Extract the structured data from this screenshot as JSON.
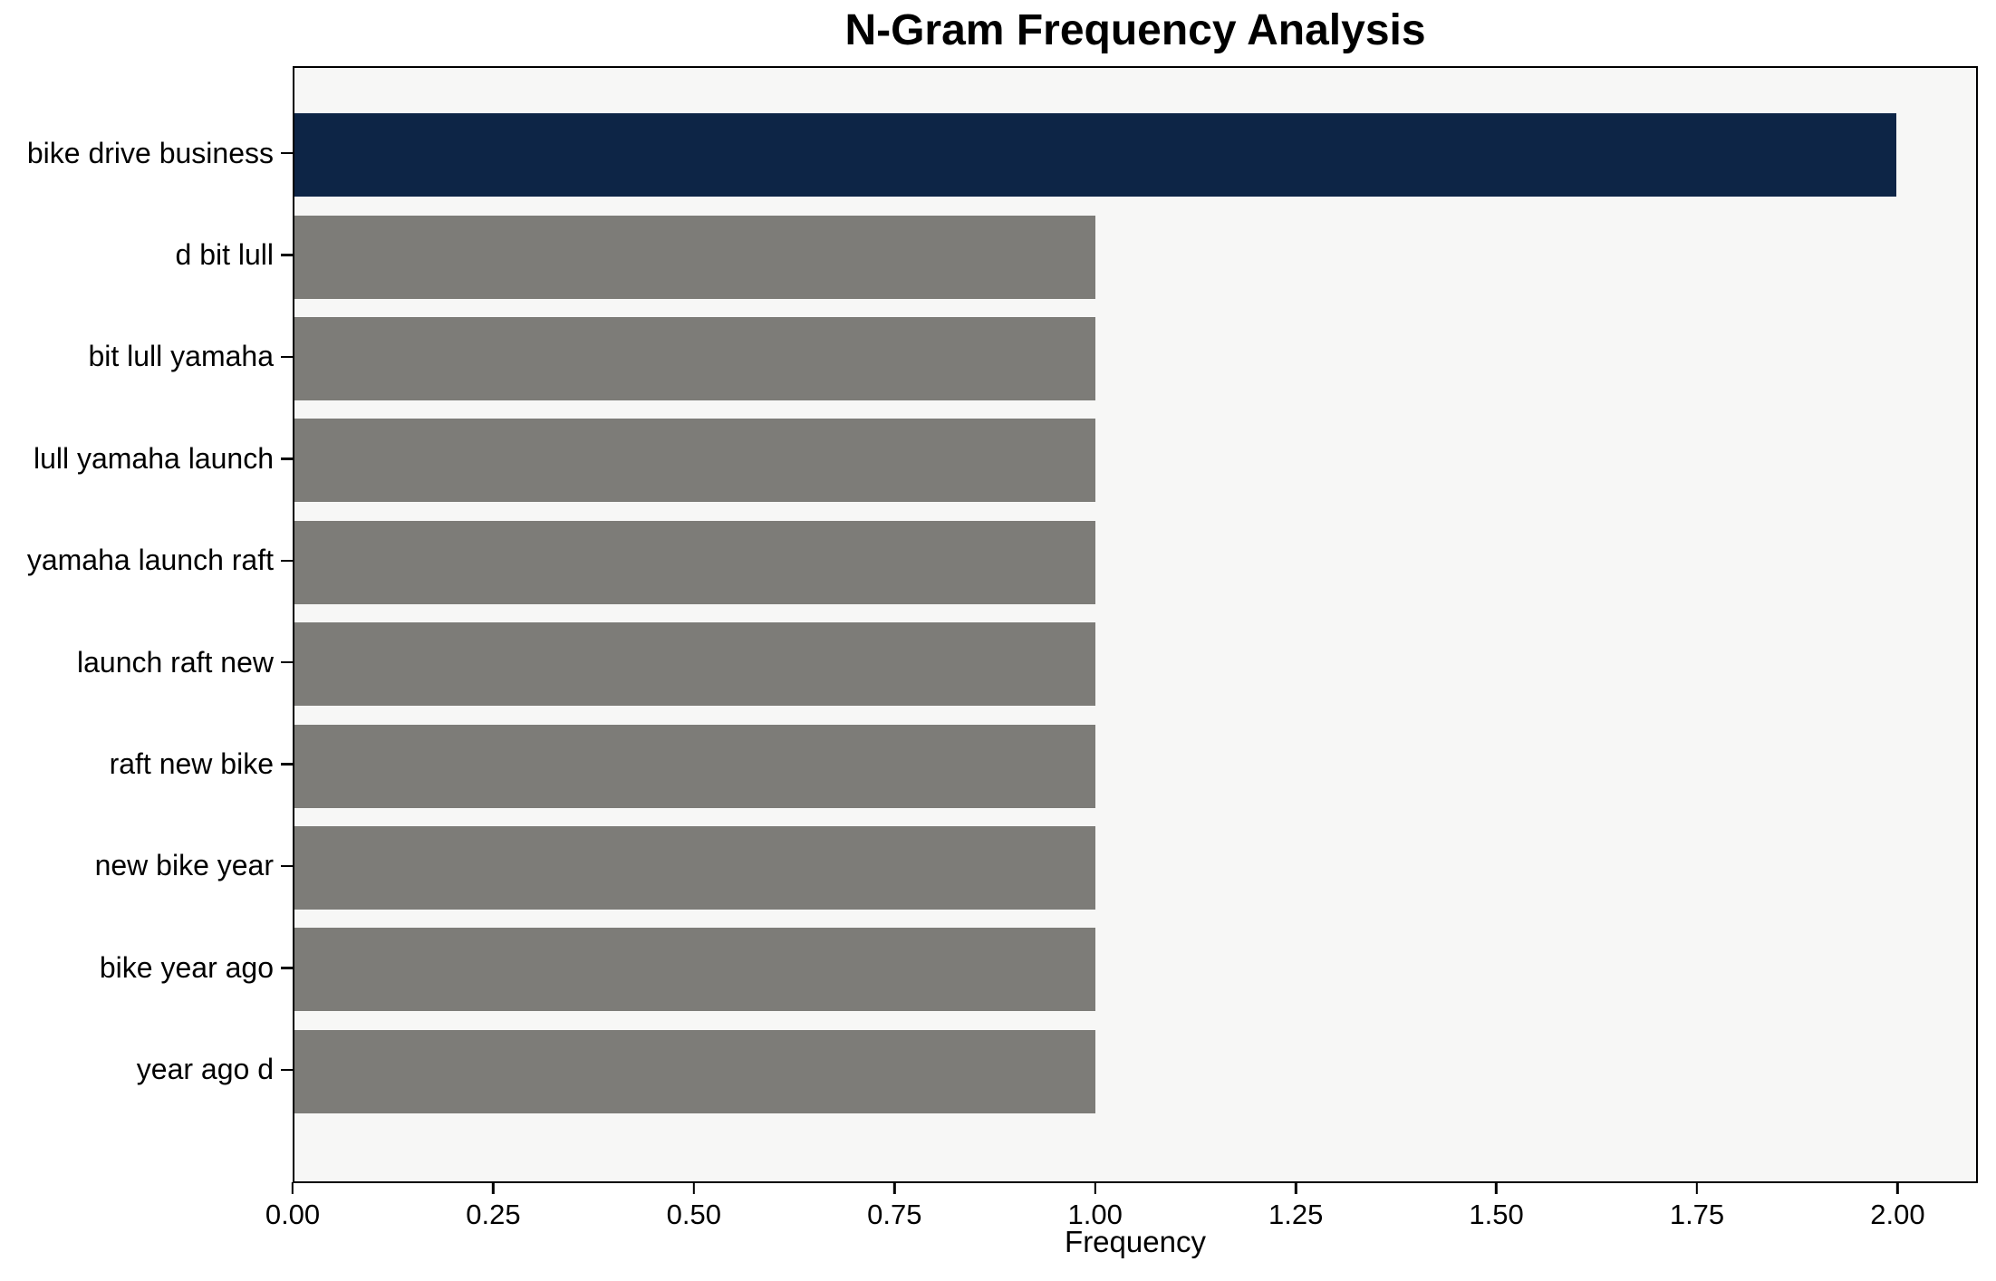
{
  "chart_data": {
    "type": "bar",
    "orientation": "horizontal",
    "title": "N-Gram Frequency Analysis",
    "xlabel": "Frequency",
    "ylabel": "",
    "categories": [
      "bike drive business",
      "d bit lull",
      "bit lull yamaha",
      "lull yamaha launch",
      "yamaha launch raft",
      "launch raft new",
      "raft new bike",
      "new bike year",
      "bike year ago",
      "year ago d"
    ],
    "values": [
      2,
      1,
      1,
      1,
      1,
      1,
      1,
      1,
      1,
      1
    ],
    "xlim": [
      0,
      2.1
    ],
    "xticks": [
      0,
      0.25,
      0.5,
      0.75,
      1.0,
      1.25,
      1.5,
      1.75,
      2.0
    ],
    "xtick_labels": [
      "0.00",
      "0.25",
      "0.50",
      "0.75",
      "1.00",
      "1.25",
      "1.50",
      "1.75",
      "2.00"
    ],
    "grid": false,
    "legend_position": "none",
    "colors": {
      "highlight_bar": "#0d2546",
      "default_bar": "#7d7c78",
      "plot_background": "#f7f7f6",
      "figure_background": "#ffffff",
      "frame": "#000000",
      "text": "#000000"
    }
  }
}
